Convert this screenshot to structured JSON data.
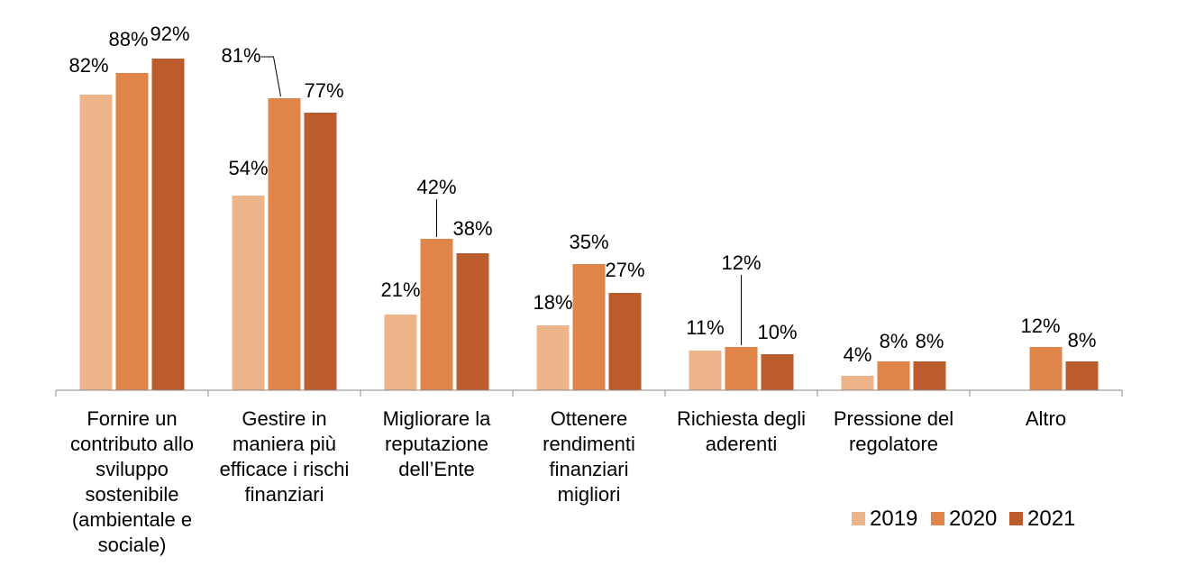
{
  "chart_data": {
    "type": "bar",
    "title": "",
    "xlabel": "",
    "ylabel": "",
    "ylim": [
      0,
      100
    ],
    "grid": false,
    "legend_position": "bottom-right",
    "categories": [
      [
        "Fornire un",
        "contributo allo",
        "sviluppo",
        "sostenibile",
        "(ambientale e",
        "sociale)"
      ],
      [
        "Gestire in",
        "maniera più",
        "efficace i rischi",
        "finanziari"
      ],
      [
        "Migliorare la",
        "reputazione",
        "dell’Ente"
      ],
      [
        "Ottenere",
        "rendimenti",
        "finanziari",
        "migliori"
      ],
      [
        "Richiesta degli",
        "aderenti"
      ],
      [
        "Pressione del",
        "regolatore"
      ],
      [
        "Altro"
      ]
    ],
    "series": [
      {
        "name": "2019",
        "color": "#EDB48A",
        "values": [
          82,
          54,
          21,
          18,
          11,
          4,
          null
        ]
      },
      {
        "name": "2020",
        "color": "#E0844A",
        "values": [
          88,
          81,
          42,
          35,
          12,
          8,
          12
        ]
      },
      {
        "name": "2021",
        "color": "#BC5B2C",
        "values": [
          92,
          77,
          38,
          27,
          10,
          8,
          8
        ]
      }
    ],
    "value_suffix": "%"
  }
}
